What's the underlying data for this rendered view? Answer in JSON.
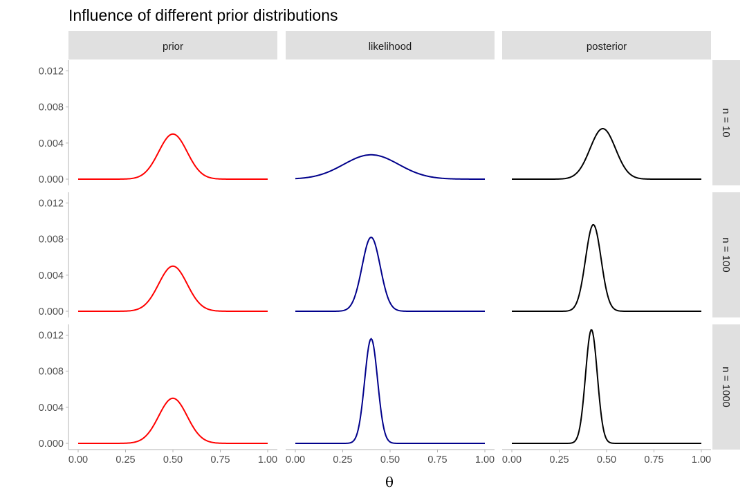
{
  "chart_data": {
    "type": "line",
    "title": "Influence of different prior distributions",
    "xlabel": "θ",
    "ylabel": "",
    "columns": [
      "prior",
      "likelihood",
      "posterior"
    ],
    "rows": [
      "n = 10",
      "n = 100",
      "n = 1000"
    ],
    "xlim": [
      0,
      1
    ],
    "ylim": [
      0,
      0.0125
    ],
    "x_ticks": [
      "0.00",
      "0.25",
      "0.50",
      "0.75",
      "1.00"
    ],
    "y_ticks": [
      "0.000",
      "0.004",
      "0.008",
      "0.012"
    ],
    "x_tick_values": [
      0,
      0.25,
      0.5,
      0.75,
      1
    ],
    "y_tick_values": [
      0,
      0.004,
      0.008,
      0.012
    ],
    "grid": false,
    "legend": "none",
    "colors": {
      "prior": "#ff0000",
      "likelihood": "#00008b",
      "posterior": "#000000",
      "strip_background": "#e0e0e0"
    },
    "panels": [
      {
        "row": "n = 10",
        "column": "prior",
        "peak_x": 0.5,
        "peak_y": 0.005,
        "sd": 0.075
      },
      {
        "row": "n = 10",
        "column": "likelihood",
        "peak_x": 0.4,
        "peak_y": 0.0027,
        "sd": 0.145
      },
      {
        "row": "n = 10",
        "column": "posterior",
        "peak_x": 0.48,
        "peak_y": 0.0056,
        "sd": 0.067
      },
      {
        "row": "n = 100",
        "column": "prior",
        "peak_x": 0.5,
        "peak_y": 0.005,
        "sd": 0.075
      },
      {
        "row": "n = 100",
        "column": "likelihood",
        "peak_x": 0.4,
        "peak_y": 0.0082,
        "sd": 0.048
      },
      {
        "row": "n = 100",
        "column": "posterior",
        "peak_x": 0.43,
        "peak_y": 0.0096,
        "sd": 0.041
      },
      {
        "row": "n = 1000",
        "column": "prior",
        "peak_x": 0.5,
        "peak_y": 0.005,
        "sd": 0.075
      },
      {
        "row": "n = 1000",
        "column": "likelihood",
        "peak_x": 0.4,
        "peak_y": 0.0116,
        "sd": 0.034
      },
      {
        "row": "n = 1000",
        "column": "posterior",
        "peak_x": 0.42,
        "peak_y": 0.0126,
        "sd": 0.031
      }
    ]
  }
}
